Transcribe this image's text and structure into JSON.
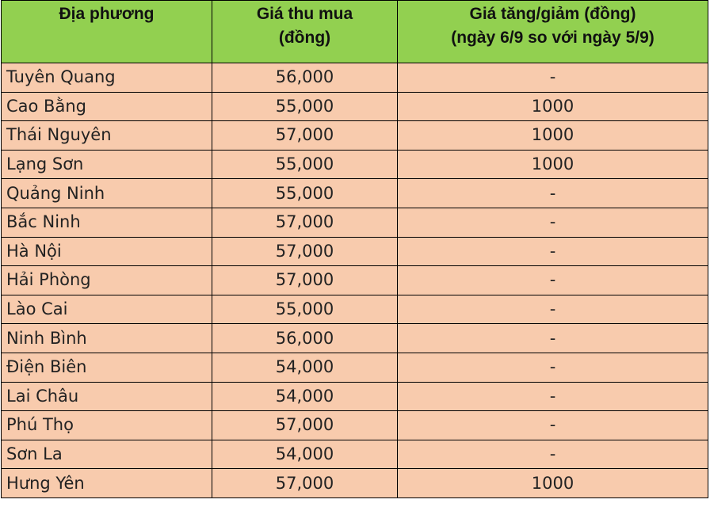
{
  "header": {
    "col1": "Địa phương",
    "col2_line1": "Giá thu mua",
    "col2_line2": "(đồng)",
    "col3_line1": "Giá tăng/giảm (đồng)",
    "col3_line2": "(ngày 6/9 so với ngày 5/9)"
  },
  "colors": {
    "header_bg": "#92d050",
    "row_bg": "#f8cbad"
  },
  "rows": [
    {
      "location": "Tuyên Quang",
      "price": "56,000",
      "change": "-"
    },
    {
      "location": "Cao Bằng",
      "price": "55,000",
      "change": "1000"
    },
    {
      "location": "Thái Nguyên",
      "price": "57,000",
      "change": "1000"
    },
    {
      "location": "Lạng Sơn",
      "price": "55,000",
      "change": "1000"
    },
    {
      "location": "Quảng Ninh",
      "price": "55,000",
      "change": "-"
    },
    {
      "location": "Bắc Ninh",
      "price": "57,000",
      "change": "-"
    },
    {
      "location": "Hà Nội",
      "price": "57,000",
      "change": "-"
    },
    {
      "location": "Hải Phòng",
      "price": "57,000",
      "change": "-"
    },
    {
      "location": "Lào Cai",
      "price": "55,000",
      "change": "-"
    },
    {
      "location": "Ninh Bình",
      "price": "56,000",
      "change": "-"
    },
    {
      "location": "Điện Biên",
      "price": "54,000",
      "change": "-"
    },
    {
      "location": "Lai Châu",
      "price": "54,000",
      "change": "-"
    },
    {
      "location": "Phú Thọ",
      "price": "57,000",
      "change": "-"
    },
    {
      "location": "Sơn La",
      "price": "54,000",
      "change": "-"
    },
    {
      "location": "Hưng Yên",
      "price": "57,000",
      "change": "1000"
    }
  ]
}
